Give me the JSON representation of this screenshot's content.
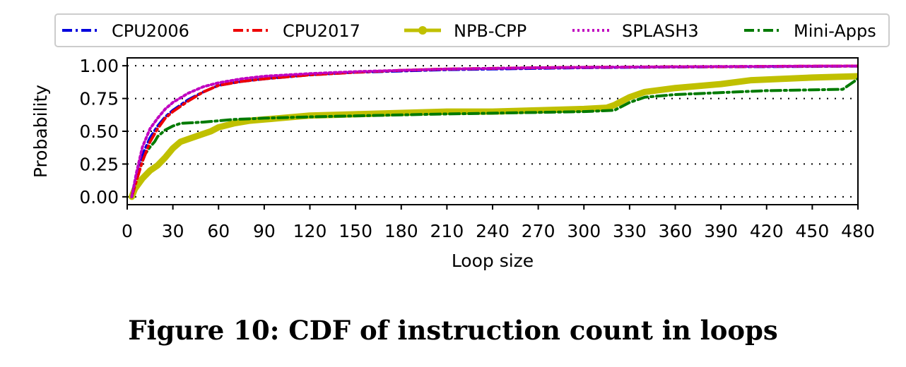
{
  "caption": "Figure 10: CDF of instruction count in loops",
  "chart_data": {
    "type": "line",
    "xlabel": "Loop size",
    "ylabel": "Probability",
    "xlim": [
      0,
      480
    ],
    "ylim": [
      -0.06,
      1.06
    ],
    "xticks": [
      0,
      30,
      60,
      90,
      120,
      150,
      180,
      210,
      240,
      270,
      300,
      330,
      360,
      390,
      420,
      450,
      480
    ],
    "yticks": [
      0.0,
      0.25,
      0.5,
      0.75,
      1.0
    ],
    "ytick_labels": [
      "0.00",
      "0.25",
      "0.50",
      "0.75",
      "1.00"
    ],
    "grid": "horizontal-dotted",
    "legend_position": "top",
    "series": [
      {
        "name": "CPU2006",
        "color": "#0000dd",
        "style": "dashdot",
        "x": [
          3,
          6,
          10,
          15,
          20,
          25,
          30,
          40,
          50,
          60,
          75,
          90,
          120,
          150,
          180,
          210,
          240,
          270,
          300,
          330,
          360,
          390,
          420,
          450,
          480
        ],
        "y": [
          0.0,
          0.15,
          0.32,
          0.45,
          0.54,
          0.61,
          0.66,
          0.74,
          0.8,
          0.85,
          0.88,
          0.9,
          0.93,
          0.95,
          0.96,
          0.97,
          0.975,
          0.98,
          0.985,
          0.988,
          0.99,
          0.992,
          0.993,
          0.995,
          0.997
        ]
      },
      {
        "name": "CPU2017",
        "color": "#ee0000",
        "style": "dashdot",
        "x": [
          3,
          6,
          10,
          15,
          20,
          25,
          30,
          40,
          50,
          60,
          75,
          90,
          120,
          150,
          180,
          210,
          240,
          270,
          300,
          330,
          360,
          390,
          420,
          450,
          480
        ],
        "y": [
          0.0,
          0.12,
          0.27,
          0.42,
          0.52,
          0.6,
          0.65,
          0.73,
          0.8,
          0.85,
          0.88,
          0.9,
          0.93,
          0.95,
          0.965,
          0.975,
          0.98,
          0.985,
          0.988,
          0.99,
          0.992,
          0.993,
          0.995,
          0.997,
          0.998
        ]
      },
      {
        "name": "NPB-CPP",
        "color": "#c0c000",
        "style": "solid-marker",
        "x": [
          3,
          5,
          10,
          15,
          20,
          25,
          30,
          35,
          45,
          55,
          60,
          70,
          80,
          90,
          100,
          110,
          120,
          150,
          180,
          210,
          240,
          270,
          300,
          315,
          320,
          325,
          330,
          340,
          360,
          390,
          410,
          430,
          450,
          480
        ],
        "y": [
          0.0,
          0.06,
          0.14,
          0.2,
          0.24,
          0.3,
          0.37,
          0.42,
          0.46,
          0.5,
          0.53,
          0.56,
          0.58,
          0.59,
          0.6,
          0.61,
          0.62,
          0.63,
          0.64,
          0.65,
          0.65,
          0.66,
          0.67,
          0.68,
          0.7,
          0.73,
          0.76,
          0.8,
          0.83,
          0.86,
          0.89,
          0.9,
          0.91,
          0.92
        ]
      },
      {
        "name": "SPLASH3",
        "color": "#c000c0",
        "style": "dotted",
        "x": [
          3,
          6,
          10,
          15,
          20,
          25,
          30,
          40,
          50,
          60,
          75,
          90,
          120,
          150,
          180,
          210,
          240,
          270,
          300,
          330,
          360,
          390,
          420,
          450,
          480
        ],
        "y": [
          0.0,
          0.18,
          0.38,
          0.52,
          0.6,
          0.67,
          0.72,
          0.79,
          0.84,
          0.87,
          0.9,
          0.92,
          0.94,
          0.955,
          0.965,
          0.975,
          0.98,
          0.985,
          0.988,
          0.99,
          0.992,
          0.994,
          0.995,
          0.997,
          0.998
        ]
      },
      {
        "name": "Mini-Apps",
        "color": "#007a00",
        "style": "dashdot",
        "x": [
          3,
          5,
          8,
          10,
          12,
          15,
          18,
          20,
          25,
          30,
          35,
          50,
          60,
          70,
          90,
          120,
          200,
          250,
          300,
          320,
          330,
          340,
          360,
          380,
          400,
          420,
          470,
          475,
          480
        ],
        "y": [
          0.0,
          0.1,
          0.2,
          0.28,
          0.33,
          0.38,
          0.42,
          0.46,
          0.51,
          0.54,
          0.56,
          0.57,
          0.58,
          0.59,
          0.6,
          0.61,
          0.63,
          0.64,
          0.65,
          0.66,
          0.72,
          0.76,
          0.78,
          0.79,
          0.8,
          0.81,
          0.82,
          0.86,
          0.9
        ]
      }
    ]
  }
}
